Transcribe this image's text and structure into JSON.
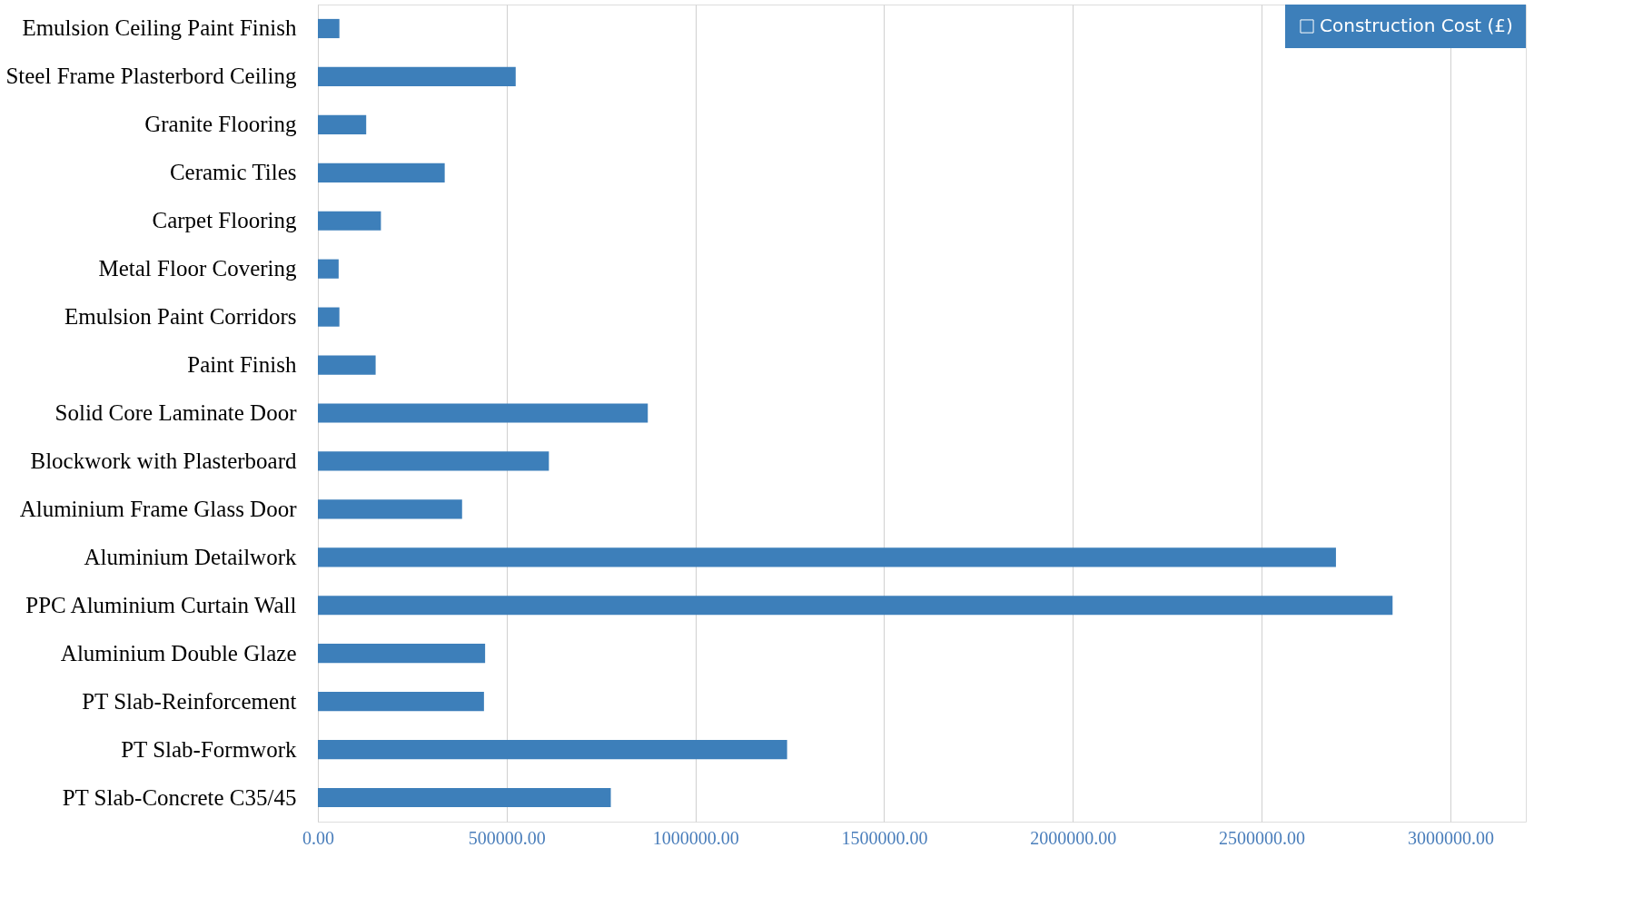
{
  "chart_data": {
    "type": "bar",
    "orientation": "horizontal",
    "categories": [
      "Emulsion Ceiling Paint Finish",
      "Steel Frame Plasterbord Ceiling",
      "Granite Flooring",
      "Ceramic Tiles",
      "Carpet Flooring",
      "Metal Floor Covering",
      "Emulsion Paint  Corridors",
      "Paint Finish",
      "Solid Core Laminate Door",
      "Blockwork with Plasterboard",
      "Aluminium Frame Glass Door",
      "Aluminium Detailwork",
      "PPC Aluminium Curtain Wall",
      "Aluminium Double Glaze",
      "PT Slab-Reinforcement",
      "PT Slab-Formwork",
      "PT Slab-Concrete C35/45"
    ],
    "series": [
      {
        "name": "Construction Cost (£)",
        "color": "#3d7fba",
        "values": [
          57000,
          524000,
          128000,
          336000,
          167000,
          55000,
          57000,
          153000,
          874000,
          612000,
          382000,
          2697000,
          2847000,
          443000,
          440000,
          1243000,
          776000
        ]
      }
    ],
    "xlim": [
      0,
      3200000
    ],
    "xticks": [
      {
        "value": 0,
        "label": "0.00"
      },
      {
        "value": 500000,
        "label": "500000.00"
      },
      {
        "value": 1000000,
        "label": "1000000.00"
      },
      {
        "value": 1500000,
        "label": "1500000.00"
      },
      {
        "value": 2000000,
        "label": "2000000.00"
      },
      {
        "value": 2500000,
        "label": "2500000.00"
      },
      {
        "value": 3000000,
        "label": "3000000.00"
      }
    ],
    "grid": "x",
    "legend": "top right"
  }
}
